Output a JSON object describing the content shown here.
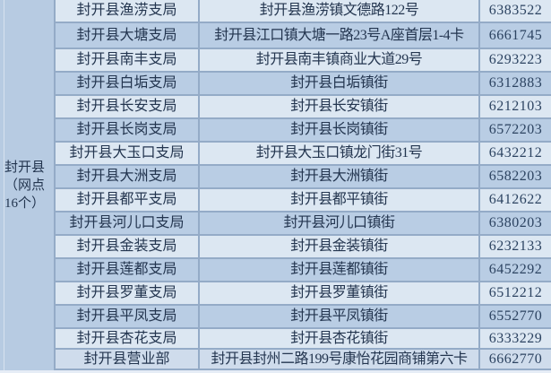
{
  "colors": {
    "row_light": "#dce7f2",
    "row_dark": "#b9cde4",
    "row_last": "#cfdcec",
    "group_cell_bg": "#b7cbe2",
    "grid_border": "#94abc7",
    "text": "#23354f"
  },
  "table": {
    "group_label": "封开县（网点16个）",
    "rows": [
      {
        "branch": "封开县渔涝支局",
        "address": "封开县渔涝镇文德路122号",
        "phone": "6383522"
      },
      {
        "branch": "封开县大塘支局",
        "address": "封开县江口镇大塘一路23号A座首层1-4卡",
        "phone": "6661745"
      },
      {
        "branch": "封开县南丰支局",
        "address": "封开县南丰镇商业大道29号",
        "phone": "6293223"
      },
      {
        "branch": "封开县白垢支局",
        "address": "封开县白垢镇街",
        "phone": "6312883"
      },
      {
        "branch": "封开县长安支局",
        "address": "封开县长安镇街",
        "phone": "6212103"
      },
      {
        "branch": "封开县长岗支局",
        "address": "封开县长岗镇街",
        "phone": "6572203"
      },
      {
        "branch": "封开县大玉口支局",
        "address": "封开县大玉口镇龙门街31号",
        "phone": "6432212"
      },
      {
        "branch": "封开县大洲支局",
        "address": "封开县大洲镇街",
        "phone": "6582203"
      },
      {
        "branch": "封开县都平支局",
        "address": "封开县都平镇街",
        "phone": "6412622"
      },
      {
        "branch": "封开县河儿口支局",
        "address": "封开县河儿口镇街",
        "phone": "6380203"
      },
      {
        "branch": "封开县金装支局",
        "address": "封开县金装镇街",
        "phone": "6232133"
      },
      {
        "branch": "封开县莲都支局",
        "address": "封开县莲都镇街",
        "phone": "6452292"
      },
      {
        "branch": "封开县罗董支局",
        "address": "封开县罗董镇街",
        "phone": "6512212"
      },
      {
        "branch": "封开县平凤支局",
        "address": "封开县平凤镇街",
        "phone": "6552770"
      },
      {
        "branch": "封开县杏花支局",
        "address": "封开县杏花镇街",
        "phone": "6333229"
      },
      {
        "branch": "封开县营业部",
        "address": "封开县封州二路199号康怡花园商铺第六卡",
        "phone": "6662770"
      }
    ]
  }
}
